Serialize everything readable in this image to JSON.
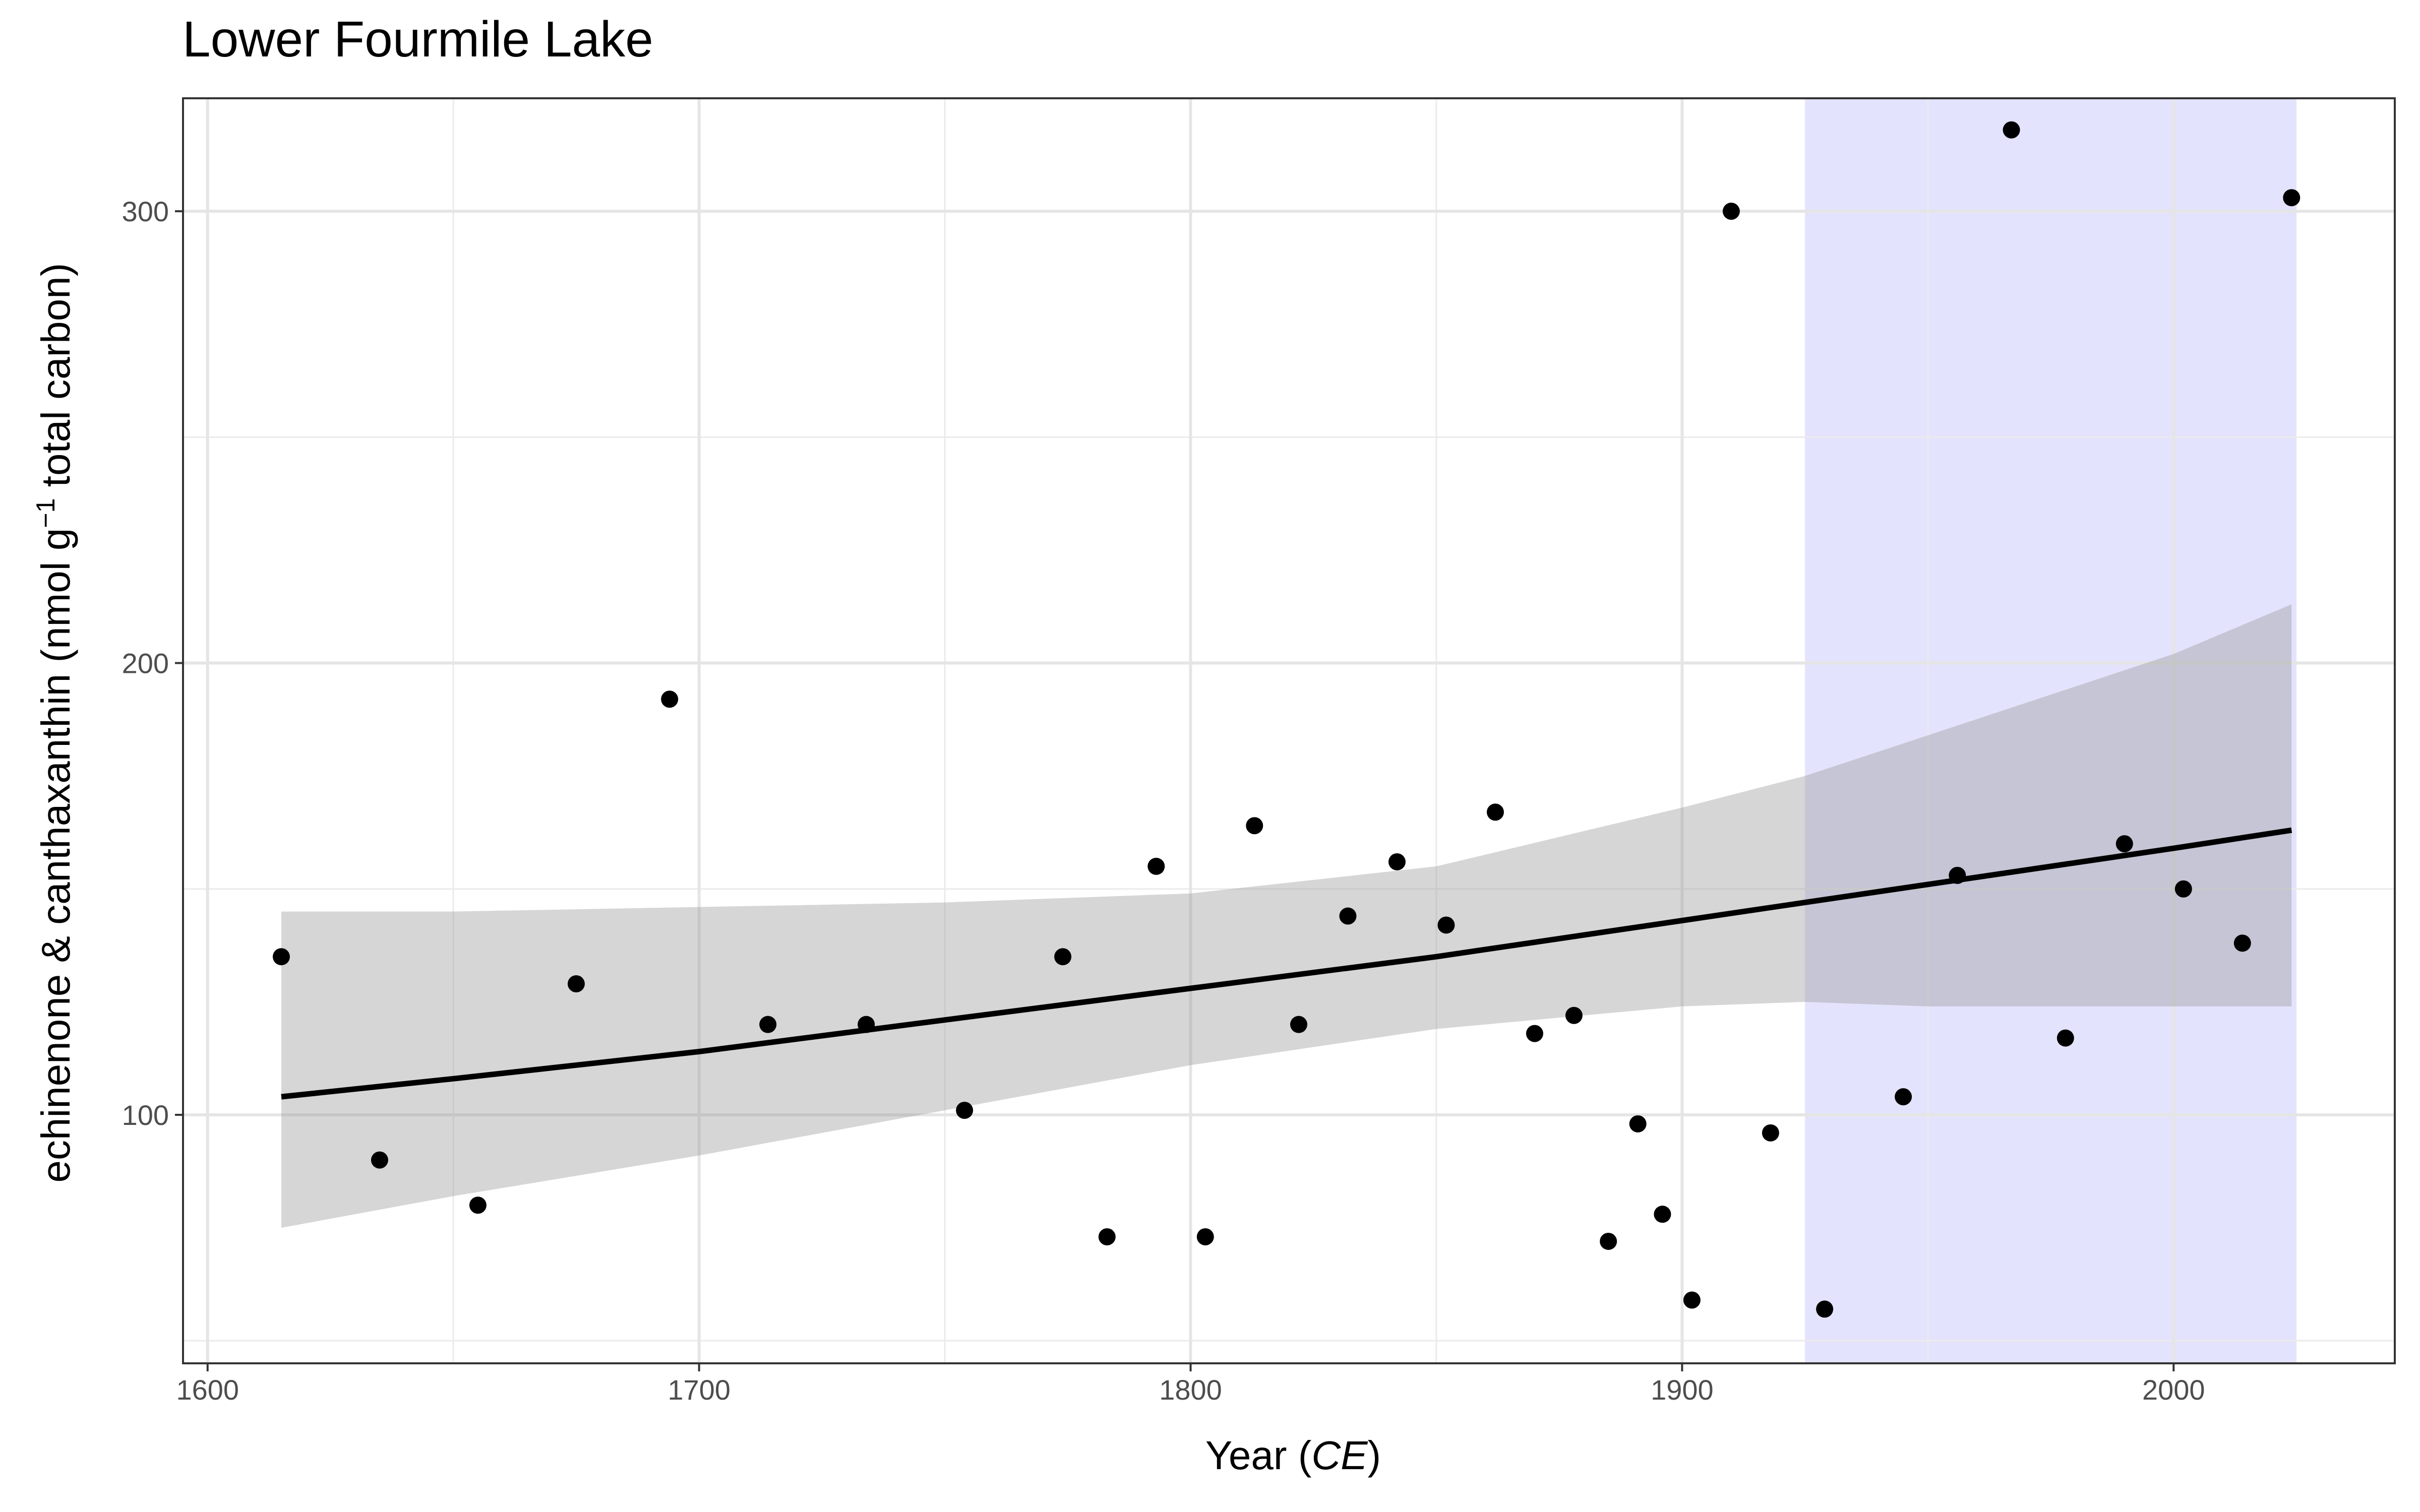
{
  "chart_data": {
    "type": "scatter",
    "title": "Lower Fourmile Lake",
    "xlabel": {
      "text": "Year (",
      "italic": "CE",
      "close": ")"
    },
    "ylabel": {
      "text": "echinenone & canthaxanthin (nmol g",
      "sup": "−1",
      "rest": " total carbon)"
    },
    "xlim": [
      1595,
      2045
    ],
    "ylim": [
      45,
      325
    ],
    "x_ticks": [
      1600,
      1700,
      1800,
      1900,
      2000
    ],
    "x_minor_ticks": [
      1650,
      1750,
      1850,
      1950
    ],
    "y_ticks": [
      100,
      200,
      300
    ],
    "y_minor_ticks": [
      50,
      150,
      250
    ],
    "grid": true,
    "shaded_period": {
      "x": [
        1925,
        2025
      ],
      "color": "#e3e3fd"
    },
    "fit": {
      "x": [
        1615,
        1650,
        1700,
        1750,
        1800,
        1850,
        1900,
        1925,
        1950,
        2000,
        2024
      ],
      "y": [
        104,
        108,
        114,
        121,
        128,
        135,
        143,
        147,
        151,
        159,
        163
      ],
      "ci_lower": [
        75,
        82,
        91,
        101,
        111,
        119,
        124,
        125,
        124,
        124,
        124
      ],
      "ci_upper": [
        145,
        145,
        146,
        147,
        149,
        155,
        168,
        175,
        184,
        202,
        213
      ],
      "line_color": "#000000",
      "band_color": "#999999"
    },
    "series": [
      {
        "point_color": "#000000",
        "x": [
          1615,
          1635,
          1655,
          1675,
          1694,
          1714,
          1734,
          1754,
          1774,
          1783,
          1793,
          1803,
          1813,
          1822,
          1832,
          1842,
          1852,
          1862,
          1870,
          1878,
          1885,
          1891,
          1896,
          1902,
          1910,
          1918,
          1929,
          1945,
          1956,
          1967,
          1978,
          1990,
          2002,
          2014,
          2024
        ],
        "y": [
          135,
          90,
          80,
          129,
          192,
          120,
          120,
          101,
          135,
          73,
          155,
          73,
          164,
          120,
          144,
          156,
          142,
          167,
          118,
          122,
          72,
          98,
          78,
          59,
          300,
          96,
          57,
          104,
          153,
          318,
          117,
          160,
          150,
          138,
          303
        ]
      }
    ]
  }
}
